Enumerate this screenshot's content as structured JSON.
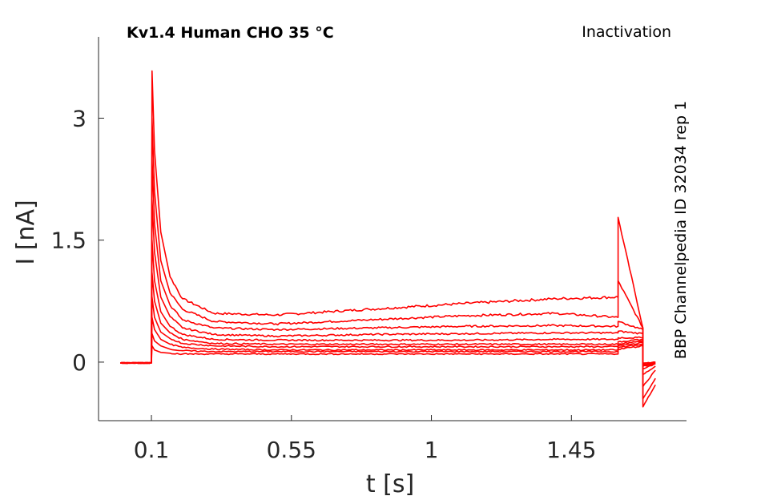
{
  "chart_data": {
    "type": "line",
    "title": "Kv1.4  Human  CHO  35 °C",
    "annotation_top_right": "Inactivation",
    "annotation_right": "BBP Channelpedia ID 32034 rep 1",
    "xlabel": "t [s]",
    "ylabel": "I [nA]",
    "xlim": [
      -0.07,
      1.82
    ],
    "ylim": [
      -0.72,
      4.0
    ],
    "xticks": [
      0.1,
      0.55,
      1,
      1.45
    ],
    "xtick_labels": [
      "0.1",
      "0.55",
      "1",
      "1.45"
    ],
    "yticks": [
      0,
      1.5,
      3
    ],
    "ytick_labels": [
      "0",
      "1.5",
      "3"
    ],
    "color": "#ff0000",
    "series": [
      {
        "x": [
          0.0,
          0.1,
          0.102,
          0.11,
          0.13,
          0.16,
          0.2,
          0.3,
          0.5,
          0.8,
          1.1,
          1.4,
          1.6,
          1.6,
          1.68,
          1.68,
          1.72
        ],
        "values": [
          -0.01,
          -0.01,
          3.58,
          2.6,
          1.6,
          1.05,
          0.78,
          0.6,
          0.58,
          0.65,
          0.72,
          0.78,
          0.8,
          1.78,
          0.42,
          -0.55,
          -0.28
        ]
      },
      {
        "x": [
          0.0,
          0.1,
          0.102,
          0.11,
          0.13,
          0.16,
          0.2,
          0.3,
          0.5,
          0.8,
          1.1,
          1.4,
          1.6,
          1.6,
          1.68,
          1.68,
          1.72
        ],
        "values": [
          -0.01,
          -0.01,
          3.0,
          2.1,
          1.25,
          0.85,
          0.65,
          0.5,
          0.47,
          0.52,
          0.57,
          0.6,
          0.55,
          1.0,
          0.42,
          -0.45,
          -0.2
        ]
      },
      {
        "x": [
          0.0,
          0.1,
          0.102,
          0.11,
          0.13,
          0.16,
          0.2,
          0.3,
          0.5,
          0.8,
          1.1,
          1.4,
          1.6,
          1.6,
          1.68,
          1.68,
          1.72
        ],
        "values": [
          -0.01,
          -0.01,
          2.5,
          1.7,
          1.0,
          0.7,
          0.52,
          0.42,
          0.4,
          0.42,
          0.44,
          0.45,
          0.44,
          0.5,
          0.4,
          -0.3,
          -0.1
        ]
      },
      {
        "x": [
          0.0,
          0.1,
          0.102,
          0.11,
          0.13,
          0.16,
          0.2,
          0.3,
          0.5,
          0.8,
          1.1,
          1.4,
          1.6,
          1.6,
          1.68,
          1.68,
          1.72
        ],
        "values": [
          -0.01,
          -0.01,
          2.0,
          1.35,
          0.8,
          0.56,
          0.42,
          0.34,
          0.32,
          0.34,
          0.35,
          0.36,
          0.36,
          0.38,
          0.35,
          -0.15,
          -0.05
        ]
      },
      {
        "x": [
          0.0,
          0.1,
          0.102,
          0.11,
          0.13,
          0.16,
          0.2,
          0.3,
          0.5,
          0.8,
          1.1,
          1.4,
          1.6,
          1.6,
          1.68,
          1.68,
          1.72
        ],
        "values": [
          -0.01,
          -0.01,
          1.5,
          1.0,
          0.62,
          0.44,
          0.34,
          0.28,
          0.27,
          0.27,
          0.27,
          0.28,
          0.28,
          0.3,
          0.3,
          -0.08,
          -0.02
        ]
      },
      {
        "x": [
          0.0,
          0.1,
          0.102,
          0.11,
          0.13,
          0.16,
          0.2,
          0.3,
          0.5,
          0.8,
          1.1,
          1.4,
          1.6,
          1.6,
          1.68,
          1.68,
          1.72
        ],
        "values": [
          -0.01,
          -0.01,
          1.1,
          0.75,
          0.48,
          0.36,
          0.28,
          0.23,
          0.22,
          0.22,
          0.22,
          0.22,
          0.22,
          0.25,
          0.28,
          -0.05,
          -0.02
        ]
      },
      {
        "x": [
          0.0,
          0.1,
          0.102,
          0.11,
          0.13,
          0.16,
          0.2,
          0.3,
          0.5,
          0.8,
          1.1,
          1.4,
          1.6,
          1.6,
          1.68,
          1.68,
          1.72
        ],
        "values": [
          -0.01,
          -0.01,
          0.8,
          0.55,
          0.37,
          0.29,
          0.23,
          0.2,
          0.19,
          0.19,
          0.19,
          0.19,
          0.19,
          0.22,
          0.26,
          -0.04,
          -0.01
        ]
      },
      {
        "x": [
          0.0,
          0.1,
          0.102,
          0.11,
          0.13,
          0.16,
          0.2,
          0.3,
          0.5,
          0.8,
          1.1,
          1.4,
          1.6,
          1.6,
          1.68,
          1.68,
          1.72
        ],
        "values": [
          -0.01,
          -0.01,
          0.55,
          0.4,
          0.28,
          0.22,
          0.18,
          0.16,
          0.15,
          0.15,
          0.15,
          0.15,
          0.15,
          0.2,
          0.24,
          -0.03,
          -0.01
        ]
      },
      {
        "x": [
          0.0,
          0.1,
          0.102,
          0.11,
          0.13,
          0.16,
          0.2,
          0.3,
          0.5,
          0.8,
          1.1,
          1.4,
          1.6,
          1.6,
          1.68,
          1.68,
          1.72
        ],
        "values": [
          -0.01,
          -0.01,
          0.35,
          0.26,
          0.2,
          0.16,
          0.14,
          0.13,
          0.13,
          0.13,
          0.13,
          0.13,
          0.13,
          0.18,
          0.22,
          -0.02,
          0.0
        ]
      },
      {
        "x": [
          0.0,
          0.1,
          0.102,
          0.11,
          0.13,
          0.16,
          0.2,
          0.3,
          0.5,
          0.8,
          1.1,
          1.4,
          1.6,
          1.6,
          1.68,
          1.68,
          1.72
        ],
        "values": [
          -0.01,
          -0.01,
          0.2,
          0.15,
          0.12,
          0.11,
          0.1,
          0.1,
          0.1,
          0.1,
          0.1,
          0.1,
          0.1,
          0.16,
          0.2,
          -0.01,
          0.0
        ]
      }
    ]
  }
}
